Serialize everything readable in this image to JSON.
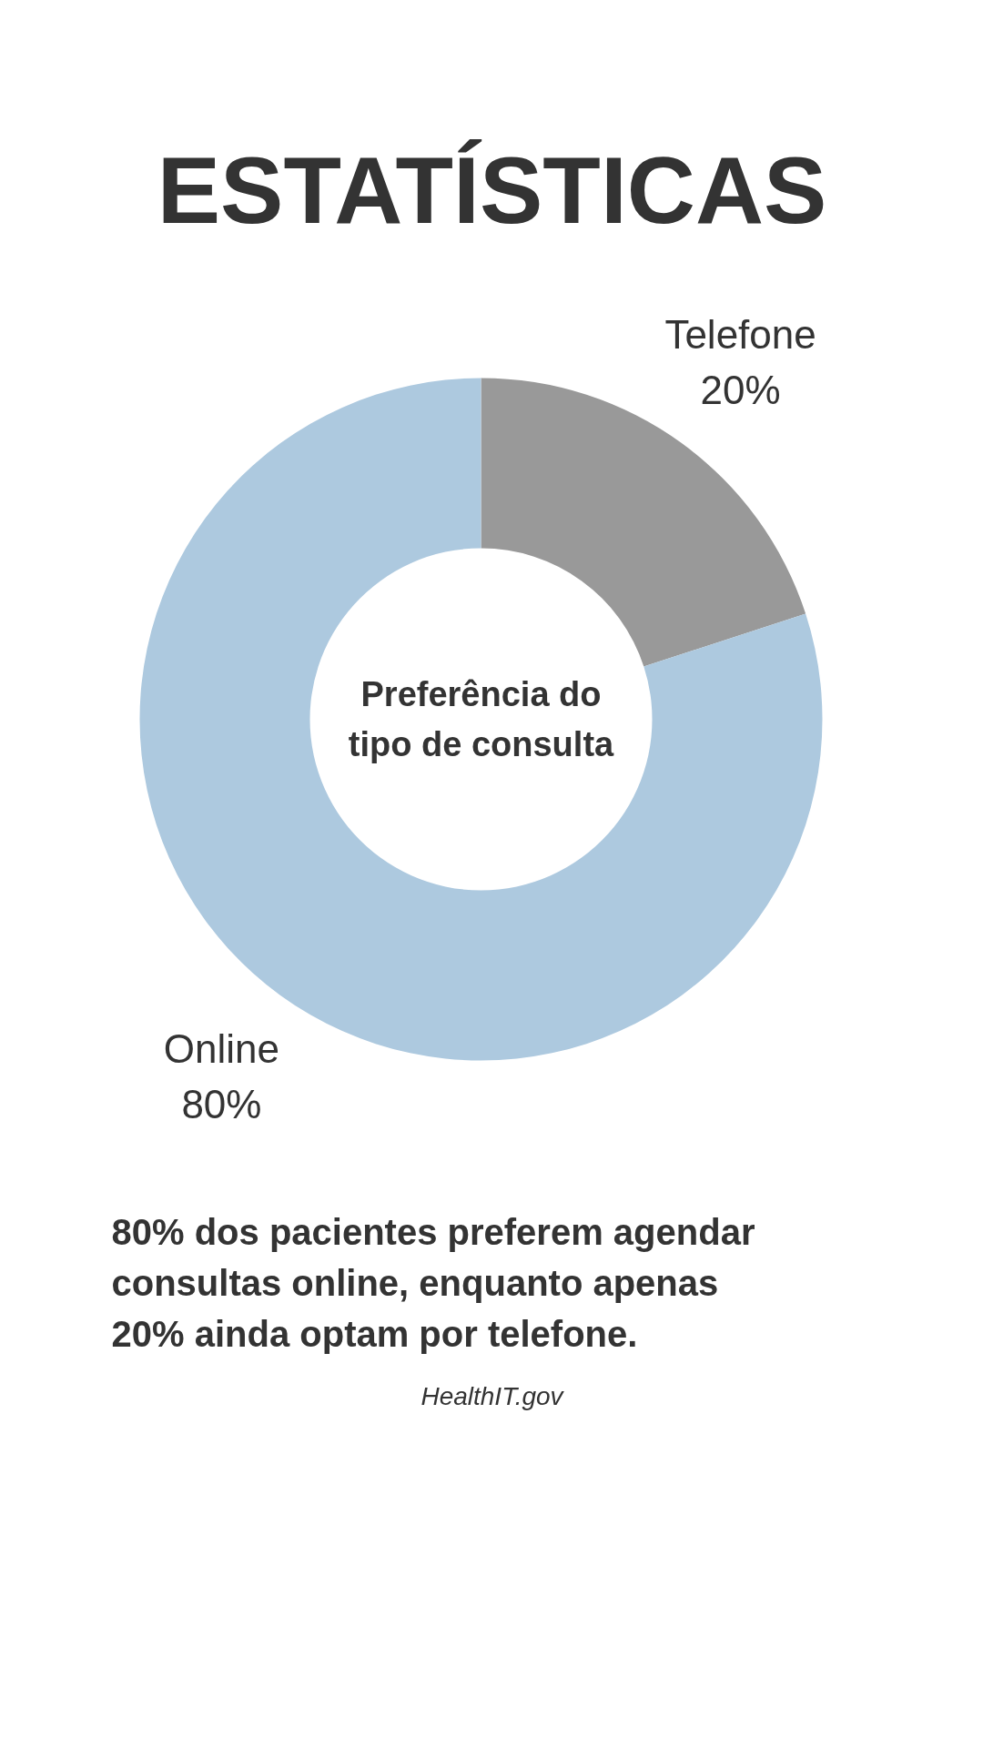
{
  "chart_data": {
    "type": "donut",
    "title": "ESTATÍSTICAS",
    "subtitle": "Preferência do tipo de consulta",
    "categories": [
      "Telefone",
      "Online"
    ],
    "values": [
      20,
      80
    ],
    "colors": [
      "#999999",
      "#adc9df"
    ],
    "value_labels": [
      "20%",
      "80%"
    ],
    "legend": false,
    "annotations": [
      "80% dos pacientes preferem agendar consultas online, enquanto apenas 20% ainda optam por telefone.",
      "HealthIT.gov"
    ]
  }
}
